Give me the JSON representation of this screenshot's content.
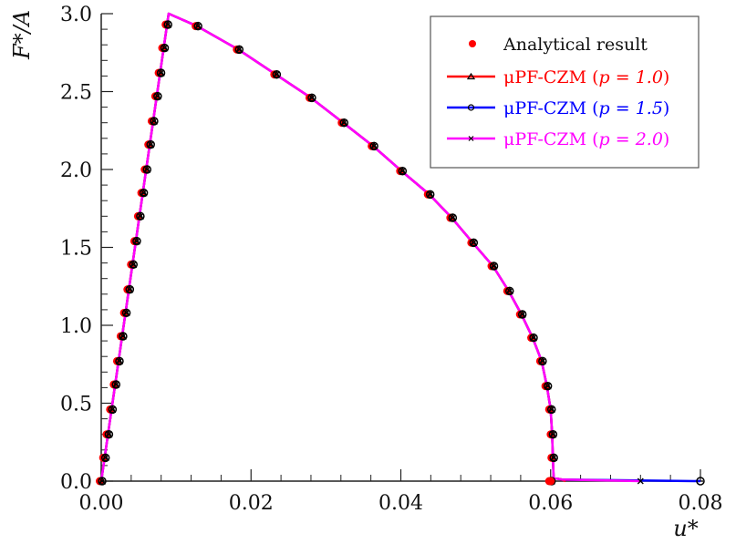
{
  "chart_data": {
    "type": "line",
    "xlabel": "u*",
    "ylabel": "F*/A",
    "xlim": [
      0,
      0.08
    ],
    "ylim": [
      0,
      3.0
    ],
    "xticks": [
      "0.00",
      "0.02",
      "0.04",
      "0.06",
      "0.08"
    ],
    "yticks": [
      "0.0",
      "0.5",
      "1.0",
      "1.5",
      "2.0",
      "2.5",
      "3.0"
    ],
    "grid": false,
    "legend_position": "top-right",
    "analytical": {
      "name": "Analytical result",
      "color": "#ff0000",
      "x": [
        0,
        0.00045,
        0.0009,
        0.00138,
        0.00186,
        0.00231,
        0.00279,
        0.00324,
        0.00369,
        0.00417,
        0.00462,
        0.0051,
        0.00555,
        0.006,
        0.00648,
        0.00693,
        0.00741,
        0.00786,
        0.00834,
        0.00879,
        0.0128,
        0.0183,
        0.0233,
        0.028,
        0.0323,
        0.0363,
        0.0401,
        0.0438,
        0.0468,
        0.0496,
        0.0523,
        0.0544,
        0.0561,
        0.0576,
        0.0588,
        0.0595,
        0.06,
        0.0602,
        0.0603,
        0.06
      ],
      "y": [
        0,
        0.15,
        0.3,
        0.46,
        0.62,
        0.77,
        0.93,
        1.08,
        1.23,
        1.39,
        1.54,
        1.7,
        1.85,
        2.0,
        2.16,
        2.31,
        2.47,
        2.62,
        2.78,
        2.93,
        2.92,
        2.77,
        2.61,
        2.46,
        2.3,
        2.15,
        1.99,
        1.84,
        1.69,
        1.53,
        1.38,
        1.22,
        1.07,
        0.92,
        0.77,
        0.61,
        0.46,
        0.3,
        0.15,
        0
      ]
    },
    "series": [
      {
        "name": "μPF-CZM (p = 1.0)",
        "label_prefix": "μPF-CZM (",
        "p_text": "p = 1.0",
        "label_suffix": ")",
        "color": "#ff0000",
        "marker": "triangle",
        "tail_end_x": 0.062
      },
      {
        "name": "μPF-CZM (p = 1.5)",
        "label_prefix": "μPF-CZM (",
        "p_text": "p = 1.5",
        "label_suffix": ")",
        "color": "#0000ff",
        "marker": "circle",
        "tail_end_x": 0.08
      },
      {
        "name": "μPF-CZM (p = 2.0)",
        "label_prefix": "μPF-CZM (",
        "p_text": "p = 2.0",
        "label_suffix": ")",
        "color": "#ff00ff",
        "marker": "x",
        "tail_end_x": 0.072
      }
    ],
    "peak": {
      "x": 0.009,
      "y": 3.0
    }
  }
}
